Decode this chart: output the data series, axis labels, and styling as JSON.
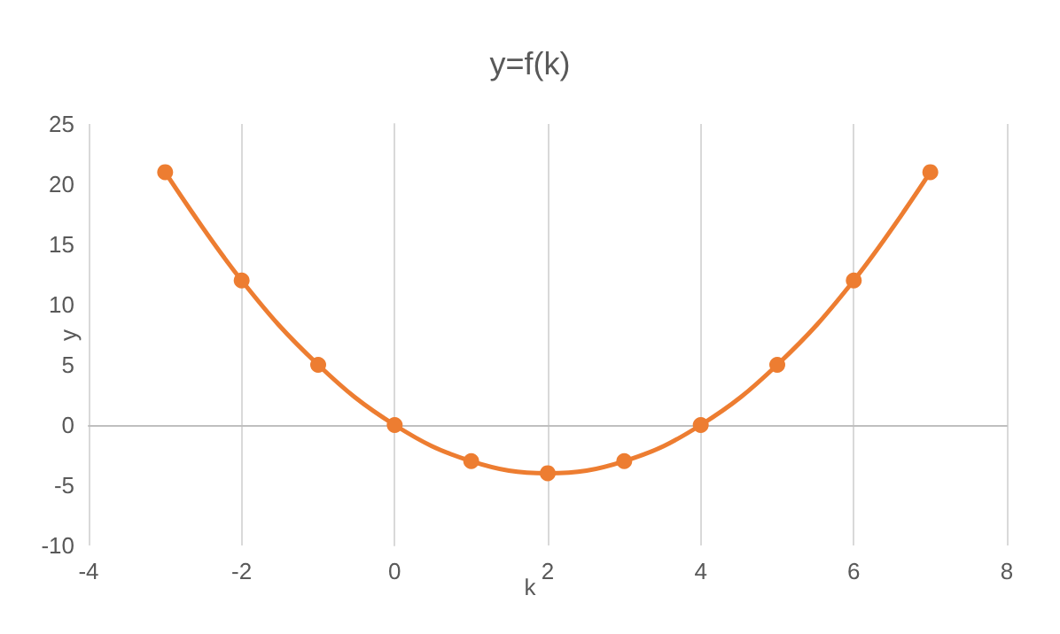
{
  "chart_data": {
    "type": "line",
    "title": "y=f(k)",
    "xlabel": "k",
    "ylabel": "y",
    "x": [
      -3,
      -2,
      -1,
      0,
      1,
      2,
      3,
      4,
      5,
      6,
      7
    ],
    "series": [
      {
        "color": "#ed7d31",
        "values": [
          21,
          12,
          5,
          0,
          -3,
          -4,
          -3,
          0,
          5,
          12,
          21
        ]
      }
    ],
    "xlim": [
      -4,
      8
    ],
    "xticks": [
      -4,
      -2,
      0,
      2,
      4,
      6,
      8
    ],
    "ylim": [
      -10,
      25
    ],
    "yticks": [
      -10,
      -5,
      0,
      5,
      10,
      15,
      20,
      25
    ],
    "grid": "x",
    "marker": "circle",
    "line_style": "solid"
  }
}
